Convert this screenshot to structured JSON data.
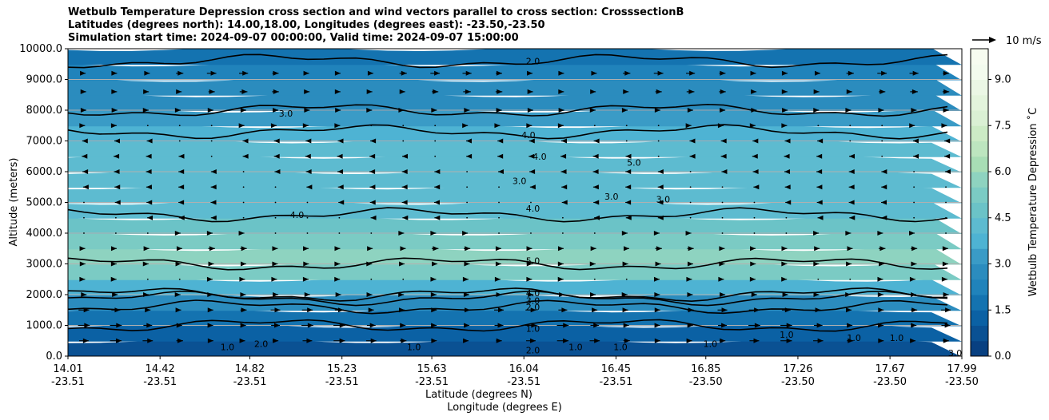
{
  "chart_data": {
    "type": "contour",
    "title_lines": [
      "Wetbulb Temperature Depression cross section and wind vectors parallel to cross section: CrosssectionB",
      "Latitudes (degrees north): 14.00,18.00, Longitudes (degrees east): -23.50,-23.50",
      "Simulation start time: 2024-09-07 00:00:00, Valid time: 2024-09-07 15:00:00"
    ],
    "ylabel": "Altitude (meters)",
    "xlabel_lat": "Latitude (degrees N)",
    "xlabel_lon": "Longitude (degrees E)",
    "ylim": [
      0,
      10000
    ],
    "y_ticks": [
      "0.0",
      "1000.0",
      "2000.0",
      "3000.0",
      "4000.0",
      "5000.0",
      "6000.0",
      "7000.0",
      "8000.0",
      "9000.0",
      "10000.0"
    ],
    "x_ticks": [
      {
        "lat": "14.01",
        "lon": "-23.51"
      },
      {
        "lat": "14.42",
        "lon": "-23.51"
      },
      {
        "lat": "14.82",
        "lon": "-23.51"
      },
      {
        "lat": "15.23",
        "lon": "-23.51"
      },
      {
        "lat": "15.63",
        "lon": "-23.51"
      },
      {
        "lat": "16.04",
        "lon": "-23.51"
      },
      {
        "lat": "16.45",
        "lon": "-23.51"
      },
      {
        "lat": "16.85",
        "lon": "-23.50"
      },
      {
        "lat": "17.26",
        "lon": "-23.50"
      },
      {
        "lat": "17.67",
        "lon": "-23.50"
      },
      {
        "lat": "17.99",
        "lon": "-23.50"
      }
    ],
    "colorbar": {
      "label": "Wetbulb Temperature Depression ˚C",
      "range": [
        0,
        10
      ],
      "ticks": [
        "0.0",
        "1.5",
        "3.0",
        "4.5",
        "6.0",
        "7.5",
        "9.0"
      ],
      "colors": [
        "#084081",
        "#0a5193",
        "#0b61a4",
        "#1473b0",
        "#2083bb",
        "#2b8cbe",
        "#3a9bc6",
        "#4eb3d3",
        "#5dbbd0",
        "#6bc3c7",
        "#7bcbc4",
        "#8ed3c0",
        "#a8ddb5",
        "#bde5bf",
        "#ccebc5",
        "#daf0d4",
        "#e3f4dc",
        "#ebf7e5",
        "#f3fbee",
        "#f7fcf0"
      ]
    },
    "bands": [
      {
        "alt": 0,
        "value": 0.4
      },
      {
        "alt": 500,
        "value": 0.9
      },
      {
        "alt": 1000,
        "value": 1.6
      },
      {
        "alt": 1500,
        "value": 2.1
      },
      {
        "alt": 2000,
        "value": 3.0
      },
      {
        "alt": 2500,
        "value": 4.6
      },
      {
        "alt": 3000,
        "value": 5.5
      },
      {
        "alt": 3500,
        "value": 5.8
      },
      {
        "alt": 4000,
        "value": 4.8
      },
      {
        "alt": 4500,
        "value": 4.2
      },
      {
        "alt": 5000,
        "value": 3.9
      },
      {
        "alt": 5500,
        "value": 4.1
      },
      {
        "alt": 6000,
        "value": 4.5
      },
      {
        "alt": 6500,
        "value": 4.4
      },
      {
        "alt": 7000,
        "value": 3.8
      },
      {
        "alt": 7500,
        "value": 3.3
      },
      {
        "alt": 8000,
        "value": 3.1
      },
      {
        "alt": 8500,
        "value": 2.8
      },
      {
        "alt": 9000,
        "value": 2.4
      },
      {
        "alt": 9500,
        "value": 1.9
      },
      {
        "alt": 10000,
        "value": 1.4
      }
    ],
    "contours": [
      {
        "level": "1.0",
        "alt": 1000
      },
      {
        "level": "2.0",
        "alt": 1600
      },
      {
        "level": "3.0",
        "alt": 1880
      },
      {
        "level": "4.0",
        "alt": 2000
      },
      {
        "level": "5.0",
        "alt": 3000
      },
      {
        "level": "4.0",
        "alt": 4600
      },
      {
        "level": "4.0",
        "alt": 7300
      },
      {
        "level": "3.0",
        "alt": 8000
      },
      {
        "level": "2.0",
        "alt": 9600
      }
    ],
    "inline_labels": [
      {
        "text": "2.0",
        "lat": 16.08,
        "alt": 9600
      },
      {
        "text": "3.0",
        "lat": 14.98,
        "alt": 7900
      },
      {
        "text": "4.0",
        "lat": 16.06,
        "alt": 7200
      },
      {
        "text": "4.0",
        "lat": 16.11,
        "alt": 6500
      },
      {
        "text": "5.0",
        "lat": 16.53,
        "alt": 6300
      },
      {
        "text": "3.0",
        "lat": 16.02,
        "alt": 5700
      },
      {
        "text": "3.0",
        "lat": 16.43,
        "alt": 5200
      },
      {
        "text": "3.0",
        "lat": 16.66,
        "alt": 5100
      },
      {
        "text": "4.0",
        "lat": 15.03,
        "alt": 4600
      },
      {
        "text": "4.0",
        "lat": 16.08,
        "alt": 4800
      },
      {
        "text": "5.0",
        "lat": 16.08,
        "alt": 3100
      },
      {
        "text": "4.0",
        "lat": 16.08,
        "alt": 2050
      },
      {
        "text": "3.0",
        "lat": 16.08,
        "alt": 1800
      },
      {
        "text": "2.0",
        "lat": 16.08,
        "alt": 1600
      },
      {
        "text": "1.0",
        "lat": 16.08,
        "alt": 900
      },
      {
        "text": "2.0",
        "lat": 16.08,
        "alt": 200
      },
      {
        "text": "1.0",
        "lat": 14.72,
        "alt": 300
      },
      {
        "text": "2.0",
        "lat": 14.87,
        "alt": 400
      },
      {
        "text": "1.0",
        "lat": 15.55,
        "alt": 300
      },
      {
        "text": "1.0",
        "lat": 16.27,
        "alt": 300
      },
      {
        "text": "1.0",
        "lat": 16.47,
        "alt": 300
      },
      {
        "text": "1.0",
        "lat": 16.87,
        "alt": 400
      },
      {
        "text": "1.0",
        "lat": 17.21,
        "alt": 700
      },
      {
        "text": "1.0",
        "lat": 17.51,
        "alt": 600
      },
      {
        "text": "1.0",
        "lat": 17.7,
        "alt": 600
      },
      {
        "text": "3.0",
        "lat": 17.96,
        "alt": 100
      }
    ],
    "wind_reference": {
      "label": "10 m/s",
      "speed": 10
    },
    "wind_rows": [
      {
        "alt": 9200,
        "u": 2.5
      },
      {
        "alt": 8600,
        "u": 2.0
      },
      {
        "alt": 8000,
        "u": 1.5
      },
      {
        "alt": 7500,
        "u": 0.6
      },
      {
        "alt": 7000,
        "u": -0.9
      },
      {
        "alt": 6500,
        "u": -1.2
      },
      {
        "alt": 6000,
        "u": -1.0
      },
      {
        "alt": 5500,
        "u": -0.8
      },
      {
        "alt": 5000,
        "u": -0.7
      },
      {
        "alt": 4500,
        "u": -0.4
      },
      {
        "alt": 4000,
        "u": 0.5
      },
      {
        "alt": 3500,
        "u": 1.8
      },
      {
        "alt": 3000,
        "u": 1.4
      },
      {
        "alt": 2500,
        "u": 0.8
      },
      {
        "alt": 2000,
        "u": 1.5
      },
      {
        "alt": 1500,
        "u": 2.8
      },
      {
        "alt": 1000,
        "u": 3.2
      },
      {
        "alt": 500,
        "u": 3.0
      }
    ]
  }
}
